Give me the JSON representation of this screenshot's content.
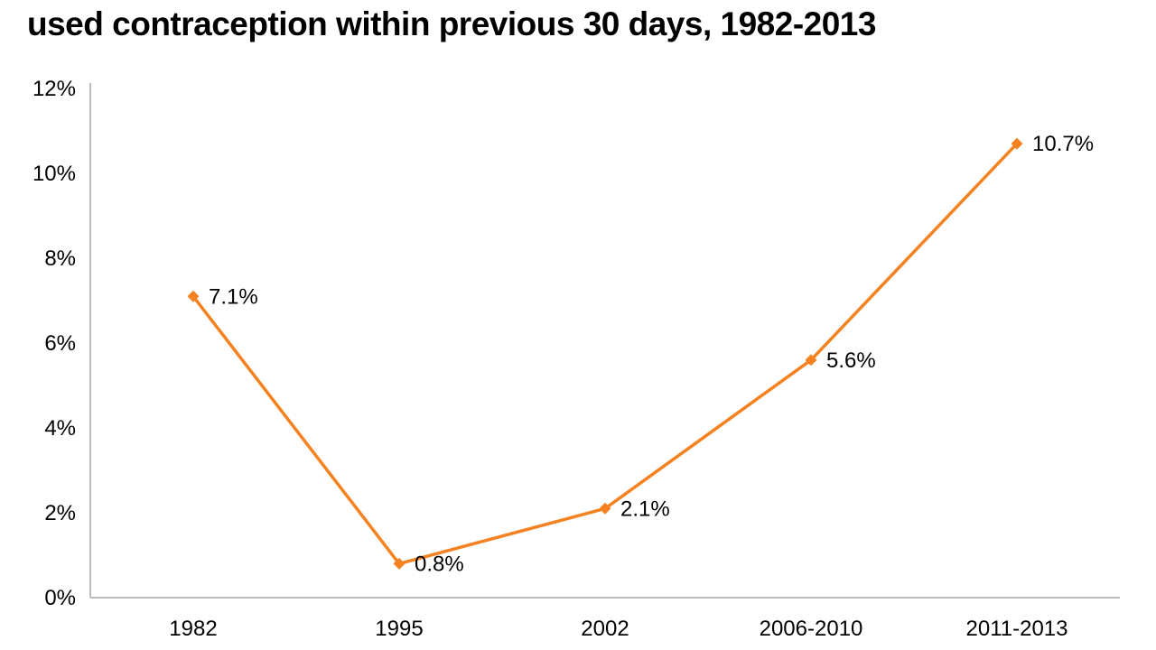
{
  "title": "used contraception within previous 30 days, 1982-2013",
  "chart_data": {
    "type": "line",
    "title": "used contraception within previous 30 days, 1982-2013",
    "categories": [
      "1982",
      "1995",
      "2002",
      "2006-2010",
      "2011-2013"
    ],
    "values": [
      7.1,
      0.8,
      2.1,
      5.6,
      10.7
    ],
    "data_labels": [
      "7.1%",
      "0.8%",
      "2.1%",
      "5.6%",
      "10.7%"
    ],
    "y_ticks": [
      "0%",
      "2%",
      "4%",
      "6%",
      "8%",
      "10%",
      "12%"
    ],
    "ylim": [
      0,
      12
    ],
    "xlabel": "",
    "ylabel": "",
    "grid": false,
    "legend": "none",
    "marker": "diamond",
    "line_color": "#F58220",
    "axis_color": "#A6A6A6",
    "label_color": "#000000"
  }
}
